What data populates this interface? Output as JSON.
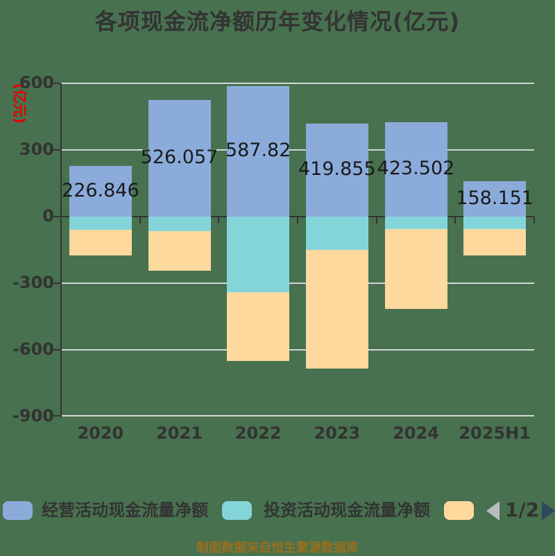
{
  "title": "各项现金流净额历年变化情况(亿元)",
  "y_axis": {
    "unit_label": "(亿元)",
    "unit_color": "#E60000",
    "ticks": [
      600,
      300,
      0,
      -300,
      -600,
      -900
    ],
    "range": [
      -900,
      600
    ]
  },
  "chart_data": {
    "type": "bar",
    "stacked": true,
    "grid": true,
    "legend_position": "bottom",
    "categories": [
      "2020",
      "2021",
      "2022",
      "2023",
      "2024",
      "2025H1"
    ],
    "series": [
      {
        "key": "operating",
        "name": "经营活动现金流量净额",
        "color": "#8BACDB",
        "values": [
          226.846,
          526.057,
          587.82,
          419.855,
          423.502,
          158.151
        ],
        "value_labels": [
          "226.846",
          "526.057",
          "587.82",
          "419.855",
          "423.502",
          "158.151"
        ]
      },
      {
        "key": "investing",
        "name": "投资活动现金流量净额",
        "color": "#84D5DA",
        "values": [
          -60,
          -65,
          -340,
          -150,
          -55,
          -55
        ]
      },
      {
        "key": "series-3",
        "name": "",
        "color": "#FDD99E",
        "values": [
          -115,
          -180,
          -310,
          -535,
          -360,
          -120
        ]
      }
    ],
    "ylim": [
      -900,
      600
    ],
    "title": "各项现金流净额历年变化情况(亿元)",
    "xlabel": "",
    "ylabel": "(亿元)"
  },
  "legend": {
    "items": [
      {
        "label": "经营活动现金流量净额",
        "color": "#8BACDB"
      },
      {
        "label": "投资活动现金流量净额",
        "color": "#84D5DA"
      },
      {
        "label": "",
        "color": "#FDD99E"
      }
    ],
    "pagination": {
      "text": "1/2",
      "prev_enabled": false,
      "next_enabled": true
    }
  },
  "footer": {
    "source_note": "制图数据来自恒生聚源数据库"
  },
  "colors": {
    "background": "#48714F",
    "axis": "#333333",
    "gridline": "#D6D6D6",
    "tick_text": "#333333",
    "value_label_text": "#1A1A1A",
    "pager_prev_arrow": "#B9BCBE",
    "pager_next_arrow": "#33475C",
    "footer_text": "#97701D",
    "y_unit_text": "#E60000"
  }
}
